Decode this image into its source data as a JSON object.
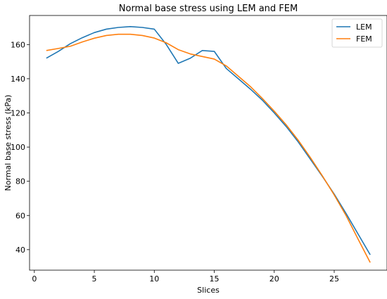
{
  "chart_data": {
    "type": "line",
    "title": "Normal base stress using LEM and FEM",
    "xlabel": "Slices",
    "ylabel": "Normal base stress (kPa)",
    "xlim": [
      -0.4,
      29.4
    ],
    "ylim": [
      28,
      177
    ],
    "xticks": [
      0,
      5,
      10,
      15,
      20,
      25
    ],
    "yticks": [
      40,
      60,
      80,
      100,
      120,
      140,
      160
    ],
    "grid": false,
    "legend_position": "top-right",
    "x": [
      1,
      2,
      3,
      4,
      5,
      6,
      7,
      8,
      9,
      10,
      11,
      12,
      13,
      14,
      15,
      16,
      17,
      18,
      19,
      20,
      21,
      22,
      23,
      24,
      25,
      26,
      27,
      28
    ],
    "series": [
      {
        "name": "LEM",
        "color": "#1f77b4",
        "values": [
          152,
          156,
          160.5,
          164,
          167,
          169,
          170,
          170.5,
          170,
          169,
          160,
          149,
          152,
          156.5,
          156,
          146,
          140,
          134,
          127.5,
          120,
          112,
          103,
          93,
          83,
          72.5,
          61,
          49,
          37
        ]
      },
      {
        "name": "FEM",
        "color": "#ff7f0e",
        "values": [
          156.5,
          157.7,
          159,
          161.5,
          163.7,
          165.3,
          166,
          166,
          165.3,
          163.8,
          161,
          157,
          154.5,
          153,
          151.5,
          147.5,
          141.5,
          135.5,
          128.5,
          121,
          113,
          104,
          94,
          83.3,
          72,
          59.8,
          46,
          32.5
        ]
      }
    ]
  }
}
